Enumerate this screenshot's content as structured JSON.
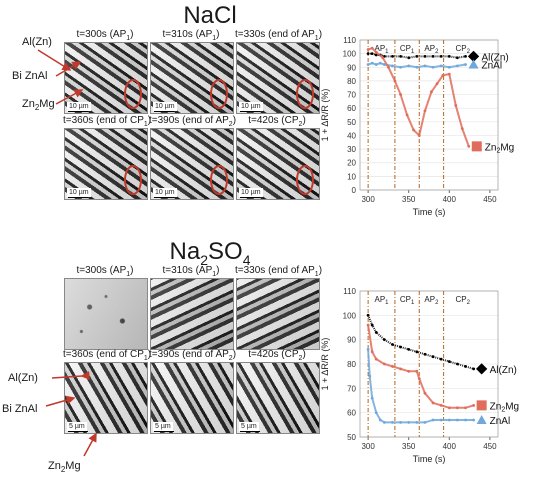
{
  "panels": [
    {
      "title": "NaCl",
      "title_sub": "",
      "images": [
        {
          "label": "t=300s (AP1)",
          "main": "t=300s (AP",
          "sub": "1",
          "tail": ")",
          "style": "micro",
          "scale": "10 µm",
          "ellipse": true
        },
        {
          "label": "t=310s (AP1)",
          "main": "t=310s (AP",
          "sub": "1",
          "tail": ")",
          "style": "micro",
          "scale": "10 µm",
          "ellipse": true
        },
        {
          "label": "t=330s (end of AP1)",
          "main": "t=330s (end of AP",
          "sub": "1",
          "tail": ")",
          "style": "micro",
          "scale": "10 µm",
          "ellipse": true
        },
        {
          "label": "t=360s (end of CP1)",
          "main": "t=360s (end of CP",
          "sub": "1",
          "tail": ")",
          "style": "micro",
          "scale": "10 µm",
          "ellipse": true
        },
        {
          "label": "t=390s (end of AP2)",
          "main": "t=390s (end of AP",
          "sub": "2",
          "tail": ")",
          "style": "micro",
          "scale": "10 µm",
          "ellipse": true
        },
        {
          "label": "t=420s (CP2)",
          "main": "t=420s (CP",
          "sub": "2",
          "tail": ")",
          "style": "micro",
          "scale": "10 µm",
          "ellipse": true
        }
      ],
      "phase_labels": [
        "AP1",
        "CP1",
        "AP2",
        "CP2"
      ],
      "annotations": [
        "Al(Zn)",
        "Bi ZnAl",
        "Zn2Mg"
      ]
    },
    {
      "title": "Na2SO4",
      "images": [
        {
          "label": "t=300s (AP1)",
          "main": "t=300s (AP",
          "sub": "1",
          "tail": ")",
          "style": "speck",
          "scale": "",
          "ellipse": false
        },
        {
          "label": "t=310s (AP1)",
          "main": "t=310s (AP",
          "sub": "1",
          "tail": ")",
          "style": "micro2",
          "scale": "",
          "ellipse": false
        },
        {
          "label": "t=330s (end of AP1)",
          "main": "t=330s (end of AP",
          "sub": "1",
          "tail": ")",
          "style": "micro2",
          "scale": "",
          "ellipse": false
        },
        {
          "label": "t=360s (end of CP1)",
          "main": "t=360s (end of CP",
          "sub": "1",
          "tail": ")",
          "style": "micro3",
          "scale": "5 µm",
          "ellipse": false
        },
        {
          "label": "t=390s (end of AP2)",
          "main": "t=390s (end of AP",
          "sub": "2",
          "tail": ")",
          "style": "micro3",
          "scale": "5 µm",
          "ellipse": false
        },
        {
          "label": "t=420s (CP2)",
          "main": "t=420s (CP",
          "sub": "2",
          "tail": ")",
          "style": "micro3",
          "scale": "5 µm",
          "ellipse": false
        }
      ],
      "phase_labels": [
        "AP1",
        "CP1",
        "AP2",
        "CP2"
      ],
      "annotations": [
        "Al(Zn)",
        "Bi ZnAl",
        "Zn2Mg"
      ]
    }
  ],
  "colors": {
    "alzn": "#000000",
    "znal": "#6fa8dc",
    "zn2mg": "#e06c5a",
    "phase_line": "#b5651d"
  },
  "chart_data": [
    {
      "type": "line",
      "panel": "NaCl",
      "xlabel": "Time (s)",
      "ylabel": "1 + ΔR/R (%)",
      "xlim": [
        290,
        460
      ],
      "ylim": [
        0,
        110
      ],
      "xticks": [
        300,
        350,
        400,
        450
      ],
      "yticks": [
        0,
        10,
        20,
        30,
        40,
        50,
        60,
        70,
        80,
        90,
        100,
        110
      ],
      "phase_boundaries": [
        300,
        333,
        363,
        393
      ],
      "series": [
        {
          "name": "Al(Zn)",
          "x": [
            300,
            305,
            310,
            315,
            320,
            330,
            340,
            350,
            360,
            370,
            380,
            390,
            400,
            410,
            420
          ],
          "values": [
            100,
            100,
            99,
            99,
            98,
            98,
            98,
            97,
            98,
            98,
            98,
            98,
            98,
            97,
            98
          ]
        },
        {
          "name": "ZnAl",
          "x": [
            300,
            305,
            310,
            315,
            320,
            330,
            340,
            350,
            360,
            370,
            380,
            390,
            400,
            410,
            420
          ],
          "values": [
            92,
            93,
            92,
            93,
            92,
            91,
            90,
            91,
            90,
            91,
            90,
            91,
            90,
            91,
            92
          ]
        },
        {
          "name": "Zn2Mg",
          "x": [
            300,
            305,
            310,
            318,
            325,
            333,
            340,
            348,
            356,
            363,
            370,
            378,
            385,
            392,
            400,
            408,
            416,
            424
          ],
          "values": [
            103,
            104,
            101,
            97,
            90,
            80,
            70,
            55,
            44,
            40,
            58,
            72,
            78,
            84,
            85,
            62,
            45,
            32
          ]
        }
      ]
    },
    {
      "type": "line",
      "panel": "Na2SO4",
      "xlabel": "Time (s)",
      "ylabel": "1 + ΔR/R (%)",
      "xlim": [
        290,
        460
      ],
      "ylim": [
        50,
        110
      ],
      "xticks": [
        300,
        350,
        400,
        450
      ],
      "yticks": [
        50,
        60,
        70,
        80,
        90,
        100,
        110
      ],
      "phase_boundaries": [
        300,
        333,
        363,
        393
      ],
      "series": [
        {
          "name": "Al(Zn)",
          "x": [
            300,
            305,
            310,
            320,
            330,
            340,
            350,
            360,
            370,
            380,
            390,
            400,
            410,
            420,
            430
          ],
          "values": [
            100,
            96,
            93,
            90,
            88,
            87,
            86,
            85,
            84,
            83,
            82,
            81,
            80,
            79,
            78
          ]
        },
        {
          "name": "Zn2Mg",
          "x": [
            300,
            305,
            310,
            320,
            330,
            340,
            350,
            360,
            363,
            370,
            380,
            390,
            400,
            410,
            420,
            430
          ],
          "values": [
            96,
            85,
            82,
            80,
            79,
            78,
            77,
            77,
            74,
            68,
            64,
            63,
            62,
            62,
            62,
            63
          ]
        },
        {
          "name": "ZnAl",
          "x": [
            300,
            302,
            305,
            310,
            315,
            320,
            330,
            340,
            350,
            360,
            370,
            380,
            390,
            400,
            410,
            420,
            430
          ],
          "values": [
            86,
            75,
            66,
            60,
            57,
            56,
            56,
            56,
            56,
            56,
            56,
            57,
            57,
            57,
            57,
            57,
            57
          ]
        }
      ]
    }
  ]
}
